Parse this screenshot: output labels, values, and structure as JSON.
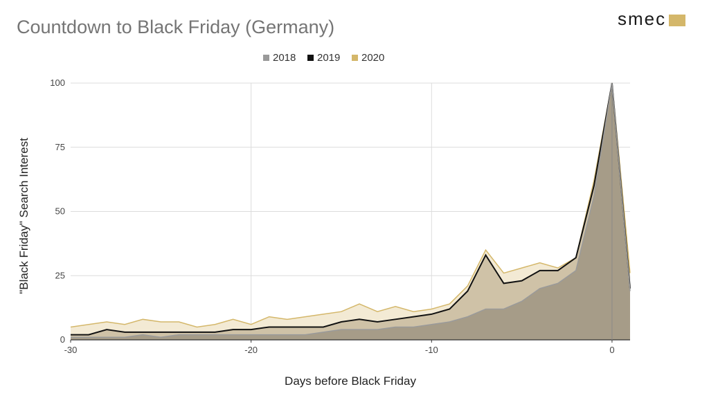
{
  "chart_data": {
    "type": "area",
    "title": "Countdown to Black Friday (Germany)",
    "xlabel": "Days before Black Friday",
    "ylabel": "\"Black Friday\" Search Interest",
    "xlim": [
      -30,
      1
    ],
    "ylim": [
      0,
      100
    ],
    "x_ticks": [
      -30,
      -20,
      -10,
      0
    ],
    "y_ticks": [
      0,
      25,
      50,
      75,
      100
    ],
    "vertical_grid_only_at": [
      -20,
      -10,
      0
    ],
    "grid": true,
    "legend_position": "top-center",
    "x": [
      -30,
      -29,
      -28,
      -27,
      -26,
      -25,
      -24,
      -23,
      -22,
      -21,
      -20,
      -19,
      -18,
      -17,
      -16,
      -15,
      -14,
      -13,
      -12,
      -11,
      -10,
      -9,
      -8,
      -7,
      -6,
      -5,
      -4,
      -3,
      -2,
      -1,
      0,
      1
    ],
    "series": [
      {
        "name": "2020",
        "color": "#d4b76a",
        "fill": "#f3ead4",
        "values": [
          5,
          6,
          7,
          6,
          8,
          7,
          7,
          5,
          6,
          8,
          6,
          9,
          8,
          9,
          10,
          11,
          14,
          11,
          13,
          11,
          12,
          14,
          21,
          35,
          26,
          28,
          30,
          28,
          32,
          62,
          100,
          26
        ]
      },
      {
        "name": "2019",
        "color": "#111111",
        "fill": "#cfc2a7",
        "values": [
          2,
          2,
          4,
          3,
          3,
          3,
          3,
          3,
          3,
          4,
          4,
          5,
          5,
          5,
          5,
          7,
          8,
          7,
          8,
          9,
          10,
          12,
          19,
          33,
          22,
          23,
          27,
          27,
          32,
          60,
          100,
          20
        ]
      },
      {
        "name": "2018",
        "color": "#9a9a9a",
        "fill": "#a39a86",
        "values": [
          1,
          1,
          1,
          1,
          2,
          1,
          2,
          2,
          2,
          2,
          2,
          2,
          2,
          2,
          3,
          4,
          4,
          4,
          5,
          5,
          6,
          7,
          9,
          12,
          12,
          15,
          20,
          22,
          27,
          56,
          100,
          19
        ]
      }
    ]
  },
  "branding": {
    "logo_text": "smec",
    "logo_color": "#d4b76a"
  }
}
